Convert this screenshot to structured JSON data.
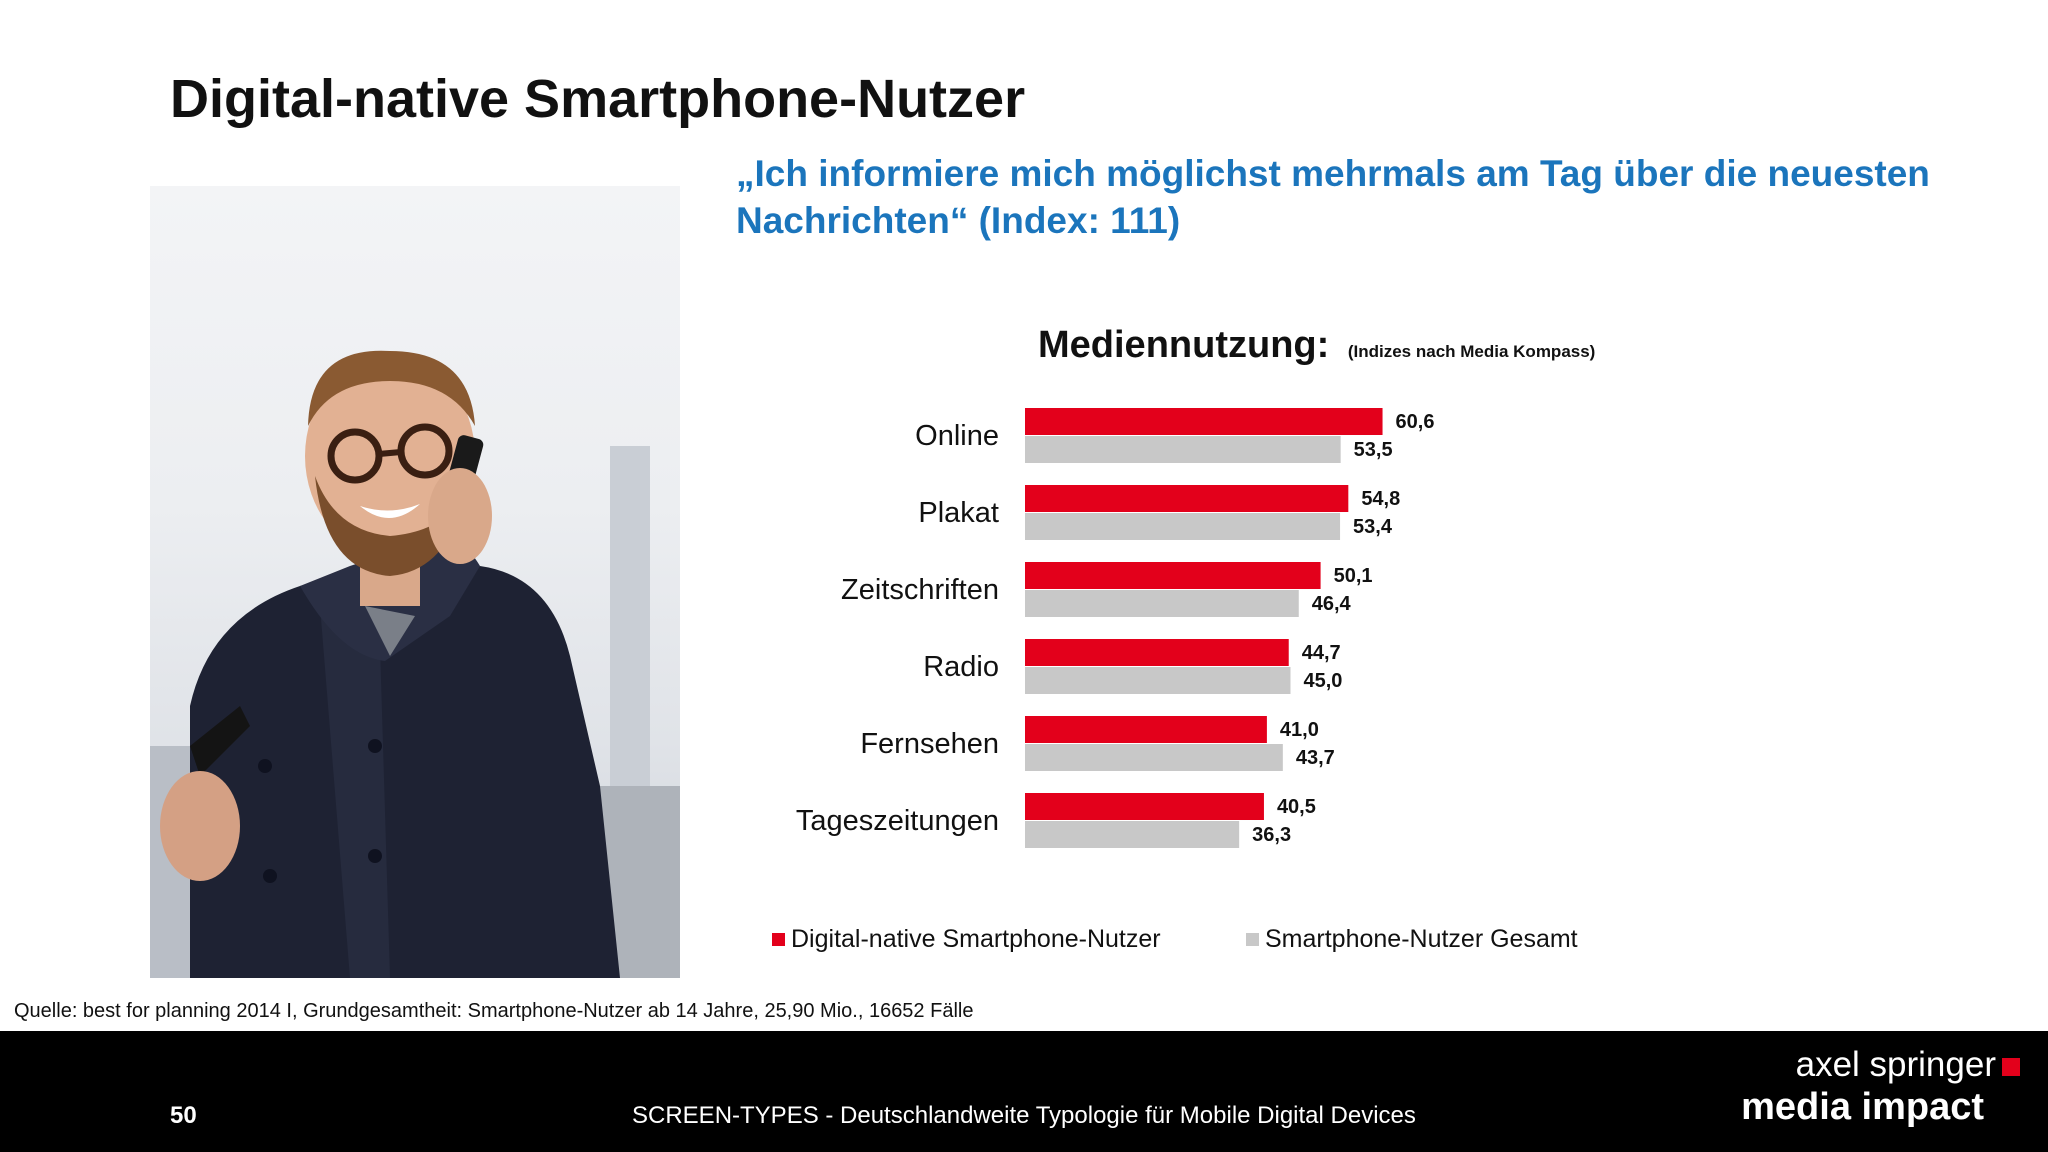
{
  "title": "Digital-native Smartphone-Nutzer",
  "quote": "„Ich informiere mich möglichst mehrmals am Tag über die neuesten Nachrichten“ (Index: 111)",
  "chart_data": {
    "type": "bar",
    "orientation": "horizontal",
    "title": "Mediennutzung:",
    "subtitle": "(Indizes nach Media Kompass)",
    "categories": [
      "Online",
      "Plakat",
      "Zeitschriften",
      "Radio",
      "Fernsehen",
      "Tageszeitungen"
    ],
    "series": [
      {
        "name": "Digital-native Smartphone-Nutzer",
        "color": "#e3001b",
        "values": [
          60.6,
          54.8,
          50.1,
          44.7,
          41.0,
          40.5
        ],
        "labels": [
          "60,6",
          "54,8",
          "50,1",
          "44,7",
          "41,0",
          "40,5"
        ]
      },
      {
        "name": "Smartphone-Nutzer Gesamt",
        "color": "#c8c8c8",
        "values": [
          53.5,
          53.4,
          46.4,
          45.0,
          43.7,
          36.3
        ],
        "labels": [
          "53,5",
          "53,4",
          "46,4",
          "45,0",
          "43,7",
          "36,3"
        ]
      }
    ],
    "xlim": [
      0,
      70
    ],
    "grid": false,
    "legend_position": "bottom"
  },
  "source": "Quelle: best for planning 2014 I, Grundgesamtheit: Smartphone-Nutzer ab 14 Jahre, 25,90 Mio., 16652 Fälle",
  "footer": {
    "page_number": "50",
    "text": "SCREEN-TYPES - Deutschlandweite Typologie für Mobile Digital Devices",
    "logo_line1": "axel springer",
    "logo_line2": "media impact"
  }
}
